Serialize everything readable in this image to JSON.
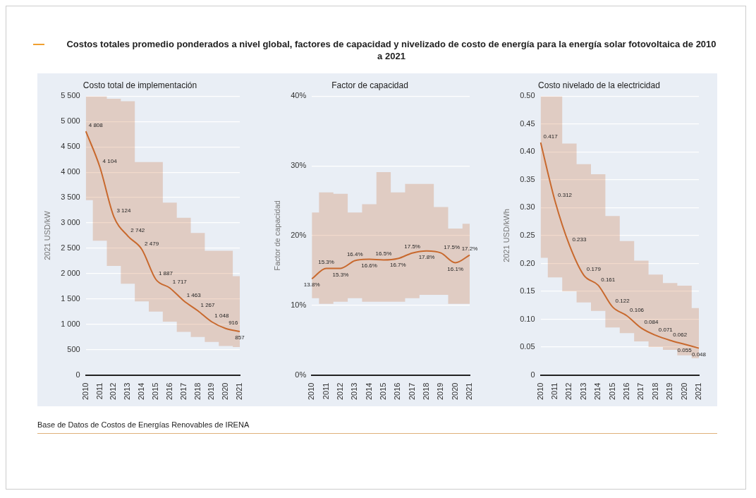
{
  "chart_data": [
    {
      "type": "other",
      "title": "Costos totales promedio ponderados a nivel global, factores de capacidad y nivelizado de costo de energía para la energía solar fotovoltaica de 2010 a 2021"
    },
    {
      "type": "line",
      "title": "Costo total de implementación",
      "ylabel": "2021 USD/kW",
      "categories": [
        "2010",
        "2011",
        "2012",
        "2013",
        "2014",
        "2015",
        "2016",
        "2017",
        "2018",
        "2019",
        "2020",
        "2021"
      ],
      "series": [
        {
          "color": "#c8692e",
          "values": [
            4808,
            4104,
            3124,
            2742,
            2479,
            1887,
            1717,
            1463,
            1267,
            1048,
            916,
            857
          ],
          "value_labels": [
            "4 808",
            "4 104",
            "3 124",
            "2 742",
            "2 479",
            "1 887",
            "1 717",
            "1 463",
            "1 267",
            "1 048",
            "916",
            "857"
          ],
          "lower": [
            3450,
            2650,
            2150,
            1800,
            1450,
            1250,
            1050,
            850,
            750,
            650,
            570,
            550
          ],
          "upper": [
            5500,
            5500,
            5450,
            5400,
            4200,
            4200,
            3400,
            3100,
            2800,
            2450,
            2450,
            1950
          ]
        }
      ],
      "ylim": [
        0,
        5500
      ],
      "yticks": [
        0,
        500,
        {
          "value": 1000,
          "label": "1 000"
        },
        {
          "value": 1500,
          "label": "1 500"
        },
        {
          "value": 2000,
          "label": "2 000"
        },
        {
          "value": 2500,
          "label": "2 500"
        },
        {
          "value": 3000,
          "label": "3 000"
        },
        {
          "value": 3500,
          "label": "3 500"
        },
        {
          "value": 4000,
          "label": "4 000"
        },
        {
          "value": 4500,
          "label": "4 500"
        },
        {
          "value": 5000,
          "label": "5 000"
        },
        {
          "value": 5500,
          "label": "5 500"
        }
      ],
      "grid": "y",
      "marker": "none",
      "legend": false
    },
    {
      "type": "line",
      "title": "Factor de capacidad",
      "ylabel": "Factor de capacidad",
      "categories": [
        "2010",
        "2011",
        "2012",
        "2013",
        "2014",
        "2015",
        "2016",
        "2017",
        "2018",
        "2019",
        "2020",
        "2021"
      ],
      "series": [
        {
          "color": "#c8692e",
          "values": [
            13.8,
            15.3,
            15.3,
            16.4,
            16.6,
            16.5,
            16.7,
            17.5,
            17.8,
            17.5,
            16.1,
            17.2
          ],
          "value_labels": [
            "13.8%",
            "15.3%",
            "15.3%",
            "16.4%",
            "16.6%",
            "16.5%",
            "16.7%",
            "17.5%",
            "17.8%",
            "17.5%",
            "16.1%",
            "17.2%"
          ],
          "lower": [
            11.0,
            10.2,
            10.5,
            11.0,
            10.5,
            10.5,
            10.5,
            11.0,
            11.5,
            11.5,
            10.2,
            10.2
          ],
          "upper": [
            23.3,
            26.2,
            26.0,
            23.3,
            24.5,
            29.1,
            26.2,
            27.4,
            27.4,
            24.1,
            21.0,
            21.7
          ]
        }
      ],
      "ylim": [
        0,
        40
      ],
      "yticks": [
        {
          "value": 0,
          "label": "0%"
        },
        {
          "value": 10,
          "label": "10%"
        },
        {
          "value": 20,
          "label": "20%"
        },
        {
          "value": 30,
          "label": "30%"
        },
        {
          "value": 40,
          "label": "40%"
        }
      ],
      "grid": "y",
      "marker": "none",
      "legend": false
    },
    {
      "type": "line",
      "title": "Costo nivelado de la electricidad",
      "ylabel": "2021 USD/kWh",
      "categories": [
        "2010",
        "2011",
        "2012",
        "2013",
        "2014",
        "2015",
        "2016",
        "2017",
        "2018",
        "2019",
        "2020",
        "2021"
      ],
      "series": [
        {
          "color": "#c8692e",
          "values": [
            0.417,
            0.312,
            0.233,
            0.179,
            0.161,
            0.122,
            0.106,
            0.084,
            0.071,
            0.062,
            0.055,
            0.048
          ],
          "value_labels": [
            "0.417",
            "0.312",
            "0.233",
            "0.179",
            "0.161",
            "0.122",
            "0.106",
            "0.084",
            "0.071",
            "0.062",
            "0.055",
            "0.048"
          ],
          "lower": [
            0.21,
            0.175,
            0.15,
            0.13,
            0.115,
            0.085,
            0.075,
            0.06,
            0.05,
            0.045,
            0.035,
            0.03
          ],
          "upper": [
            0.5,
            0.5,
            0.415,
            0.378,
            0.36,
            0.285,
            0.24,
            0.205,
            0.18,
            0.165,
            0.16,
            0.12
          ]
        }
      ],
      "ylim": [
        0,
        0.5
      ],
      "yticks": [
        0,
        0.05,
        {
          "value": 0.1,
          "label": "0.10"
        },
        0.15,
        {
          "value": 0.2,
          "label": "0.20"
        },
        0.25,
        {
          "value": 0.3,
          "label": "0.30"
        },
        0.35,
        {
          "value": 0.4,
          "label": "0.40"
        },
        0.45,
        {
          "value": 0.5,
          "label": "0.50"
        }
      ],
      "grid": "y",
      "marker": "none",
      "legend": false
    },
    {
      "type": "other",
      "annotations": [
        "Base de Datos de Costos de Energías Renovables de IRENA"
      ]
    }
  ]
}
